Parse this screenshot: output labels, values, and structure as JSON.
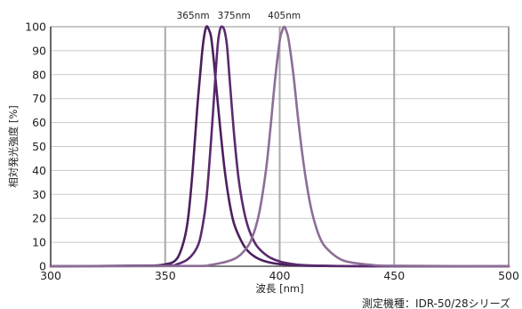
{
  "chart_data": {
    "type": "line",
    "xlabel": "波長 [nm]",
    "ylabel": "相対発光強度 [%]",
    "xlim": [
      300,
      500
    ],
    "ylim": [
      0,
      100
    ],
    "x_ticks": [
      "300",
      "350",
      "400",
      "450",
      "500"
    ],
    "y_ticks": [
      "0",
      "10",
      "20",
      "30",
      "40",
      "50",
      "60",
      "70",
      "80",
      "90",
      "100"
    ],
    "grid": "vertical",
    "footnote": "測定機種：IDR-50/28シリーズ",
    "series": [
      {
        "name": "365nm",
        "color": "#4b1f5e",
        "x": [
          300,
          340,
          350,
          355,
          358,
          360,
          362,
          364,
          366,
          367,
          368,
          369,
          370,
          371,
          372,
          374,
          376,
          378,
          380,
          383,
          386,
          390,
          395,
          400,
          410,
          420,
          440,
          500
        ],
        "y": [
          0,
          0.2,
          0.8,
          3,
          10,
          20,
          40,
          66,
          88,
          96,
          100,
          99,
          96,
          88,
          78,
          58,
          40,
          27,
          18,
          11,
          6.5,
          3.5,
          1.7,
          0.9,
          0.3,
          0.1,
          0,
          0
        ]
      },
      {
        "name": "375nm",
        "color": "#5a2a6e",
        "x": [
          300,
          350,
          355,
          360,
          364,
          366,
          368,
          370,
          372,
          373,
          374,
          375,
          376,
          377,
          378,
          380,
          382,
          384,
          386,
          388,
          390,
          393,
          396,
          400,
          405,
          410,
          420,
          440,
          500
        ],
        "y": [
          0,
          0.3,
          0.8,
          3,
          8,
          15,
          28,
          52,
          80,
          93,
          99,
          100,
          98,
          92,
          80,
          56,
          37,
          25,
          17,
          12,
          8.5,
          5.5,
          3.5,
          2,
          1,
          0.5,
          0.2,
          0,
          0
        ]
      },
      {
        "name": "405nm",
        "color": "#8c6e96",
        "x": [
          300,
          360,
          370,
          380,
          385,
          388,
          391,
          394,
          396,
          398,
          400,
          401,
          402,
          403,
          404,
          406,
          408,
          410,
          412,
          414,
          416,
          418,
          420,
          425,
          430,
          440,
          450,
          500
        ],
        "y": [
          0,
          0.1,
          0.6,
          3,
          7,
          12,
          22,
          40,
          58,
          78,
          94,
          98,
          100,
          98,
          94,
          80,
          62,
          46,
          33,
          23,
          16,
          11,
          8,
          3.8,
          1.8,
          0.6,
          0.2,
          0
        ]
      }
    ]
  }
}
